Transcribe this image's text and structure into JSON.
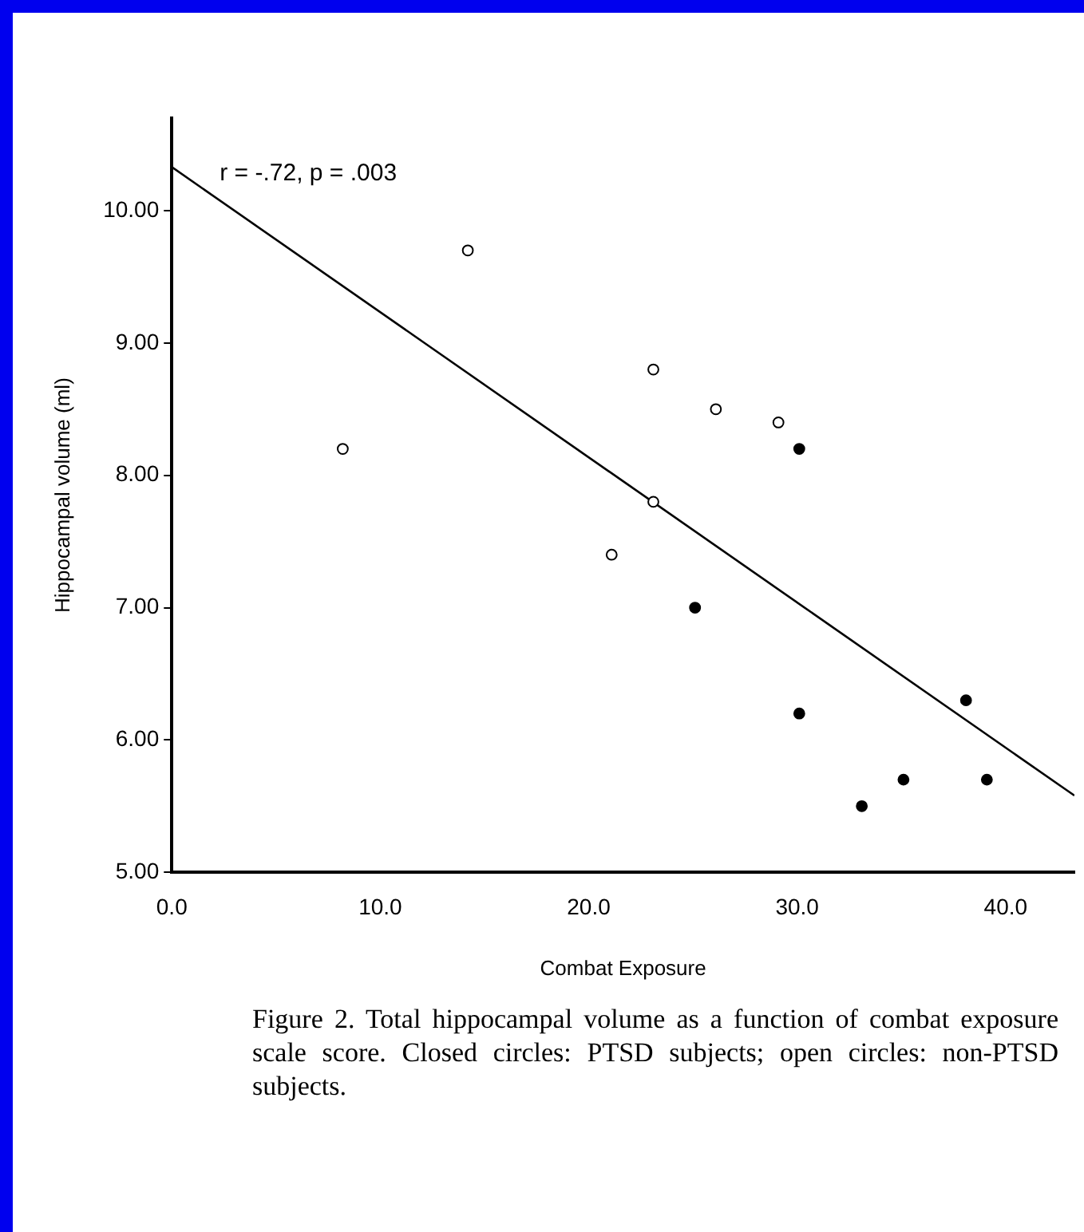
{
  "chart_data": {
    "type": "scatter",
    "xlabel": "Combat Exposure",
    "ylabel": "Hippocampal volume (ml)",
    "annotations": [
      "r = -.72, p = .003",
      "Figure 2. Total hippocampal volume as a function of combat exposure scale score. Closed circles: PTSD subjects; open circles: non-PTSD subjects."
    ],
    "series": [
      {
        "color": "#ffffff",
        "x": [
          8.2,
          14.2,
          23.1,
          26.1,
          29.1,
          23.1,
          21.1
        ],
        "values": [
          8.2,
          9.7,
          8.8,
          8.5,
          8.4,
          7.8,
          7.4
        ]
      },
      {
        "color": "#000000",
        "x": [
          30.1,
          25.1,
          30.1,
          38.1,
          33.1,
          35.1,
          39.1
        ],
        "values": [
          8.2,
          7.0,
          6.2,
          6.3,
          5.5,
          5.7,
          5.7
        ]
      },
      {
        "type": "line",
        "marker": "none",
        "color": "#000000",
        "x": [
          0,
          43.3
        ],
        "values": [
          10.33,
          5.58
        ]
      }
    ],
    "marker": "circle",
    "grid": false,
    "legend": false,
    "xlim": [
      0,
      43.3
    ],
    "xticks": [
      {
        "value": 0,
        "label": "0.0"
      },
      {
        "value": 10,
        "label": "10.0"
      },
      {
        "value": 20,
        "label": "20.0"
      },
      {
        "value": 30,
        "label": "30.0"
      },
      {
        "value": 40,
        "label": "40.0"
      }
    ],
    "ylim": [
      5,
      10.7
    ],
    "yticks": [
      {
        "value": 5,
        "label": "5.00"
      },
      {
        "value": 6,
        "label": "6.00"
      },
      {
        "value": 7,
        "label": "7.00"
      },
      {
        "value": 8,
        "label": "8.00"
      },
      {
        "value": 9,
        "label": "9.00"
      },
      {
        "value": 10,
        "label": "10.00"
      }
    ]
  }
}
